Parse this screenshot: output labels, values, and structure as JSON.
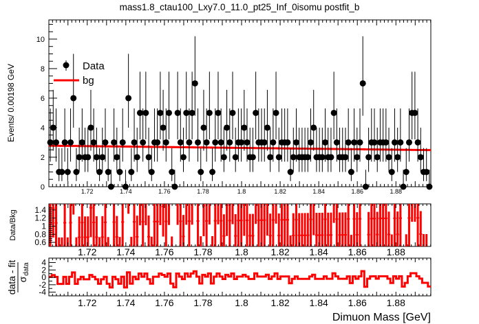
{
  "chart_data": {
    "type": "scatter",
    "title": "mass1.8_ctau100_Lxy7.0_11.0_pt25_Inf_0isomu   postfit_b",
    "xlabel": "Dimuon Mass [GeV]",
    "ylabel": "Events/ 0.00198 GeV",
    "xlim": [
      1.7001,
      1.8981
    ],
    "ylim": [
      0,
      11.3
    ],
    "x_ticks": [
      "1.72",
      "1.74",
      "1.76",
      "1.78",
      "1.8",
      "1.82",
      "1.84",
      "1.86",
      "1.88"
    ],
    "y_ticks": [
      "0",
      "2",
      "4",
      "6",
      "8",
      "10"
    ],
    "legend": {
      "placement": "top-left",
      "entries": [
        "Data",
        "bg"
      ]
    },
    "colors": {
      "data": "#000000",
      "fit": "#ff0000"
    },
    "bin_width": 0.00198,
    "data_counts": [
      3,
      4,
      3,
      1,
      1,
      3,
      1,
      3,
      6,
      1,
      2,
      3,
      2,
      2,
      4,
      3,
      2,
      1,
      2,
      3,
      1,
      0,
      3,
      2,
      1,
      3,
      0,
      6,
      1,
      3,
      2,
      5,
      3,
      5,
      2,
      1,
      3,
      3,
      5,
      4,
      3,
      5,
      1,
      0,
      5,
      3,
      2,
      5,
      3,
      5,
      7,
      3,
      1,
      4,
      3,
      5,
      1,
      3,
      5,
      3,
      2,
      4,
      3,
      5,
      2,
      3,
      3,
      4,
      3,
      2,
      2,
      5,
      3,
      3,
      3,
      4,
      2,
      3,
      5,
      2,
      3,
      3,
      3,
      1,
      2,
      3,
      2,
      2,
      2,
      2,
      3,
      4,
      2,
      2,
      2,
      3,
      2,
      2,
      5,
      3,
      2,
      2,
      2,
      3,
      1,
      3,
      2,
      3,
      7,
      0,
      2,
      3,
      3,
      2,
      3,
      3,
      3,
      2,
      1,
      3,
      2,
      3,
      0,
      1,
      3,
      5,
      5,
      3,
      2,
      1,
      1,
      0
    ],
    "fit_curve": {
      "x": [
        1.7001,
        1.8981
      ],
      "y": [
        2.78,
        2.48
      ]
    },
    "ratio": {
      "ylabel": "Data/Bkg",
      "ylim": [
        0.5,
        1.55
      ],
      "y_ticks": [
        "0.6",
        "0.8",
        "1",
        "1.2",
        "1.4"
      ]
    },
    "pull": {
      "ylabel_numerator": "data - fit",
      "ylabel_denominator": "σ",
      "ylabel_subscript": "data",
      "ylim": [
        -5,
        5.2
      ],
      "y_ticks": [
        "-4",
        "-2",
        "0",
        "2",
        "4"
      ]
    }
  }
}
